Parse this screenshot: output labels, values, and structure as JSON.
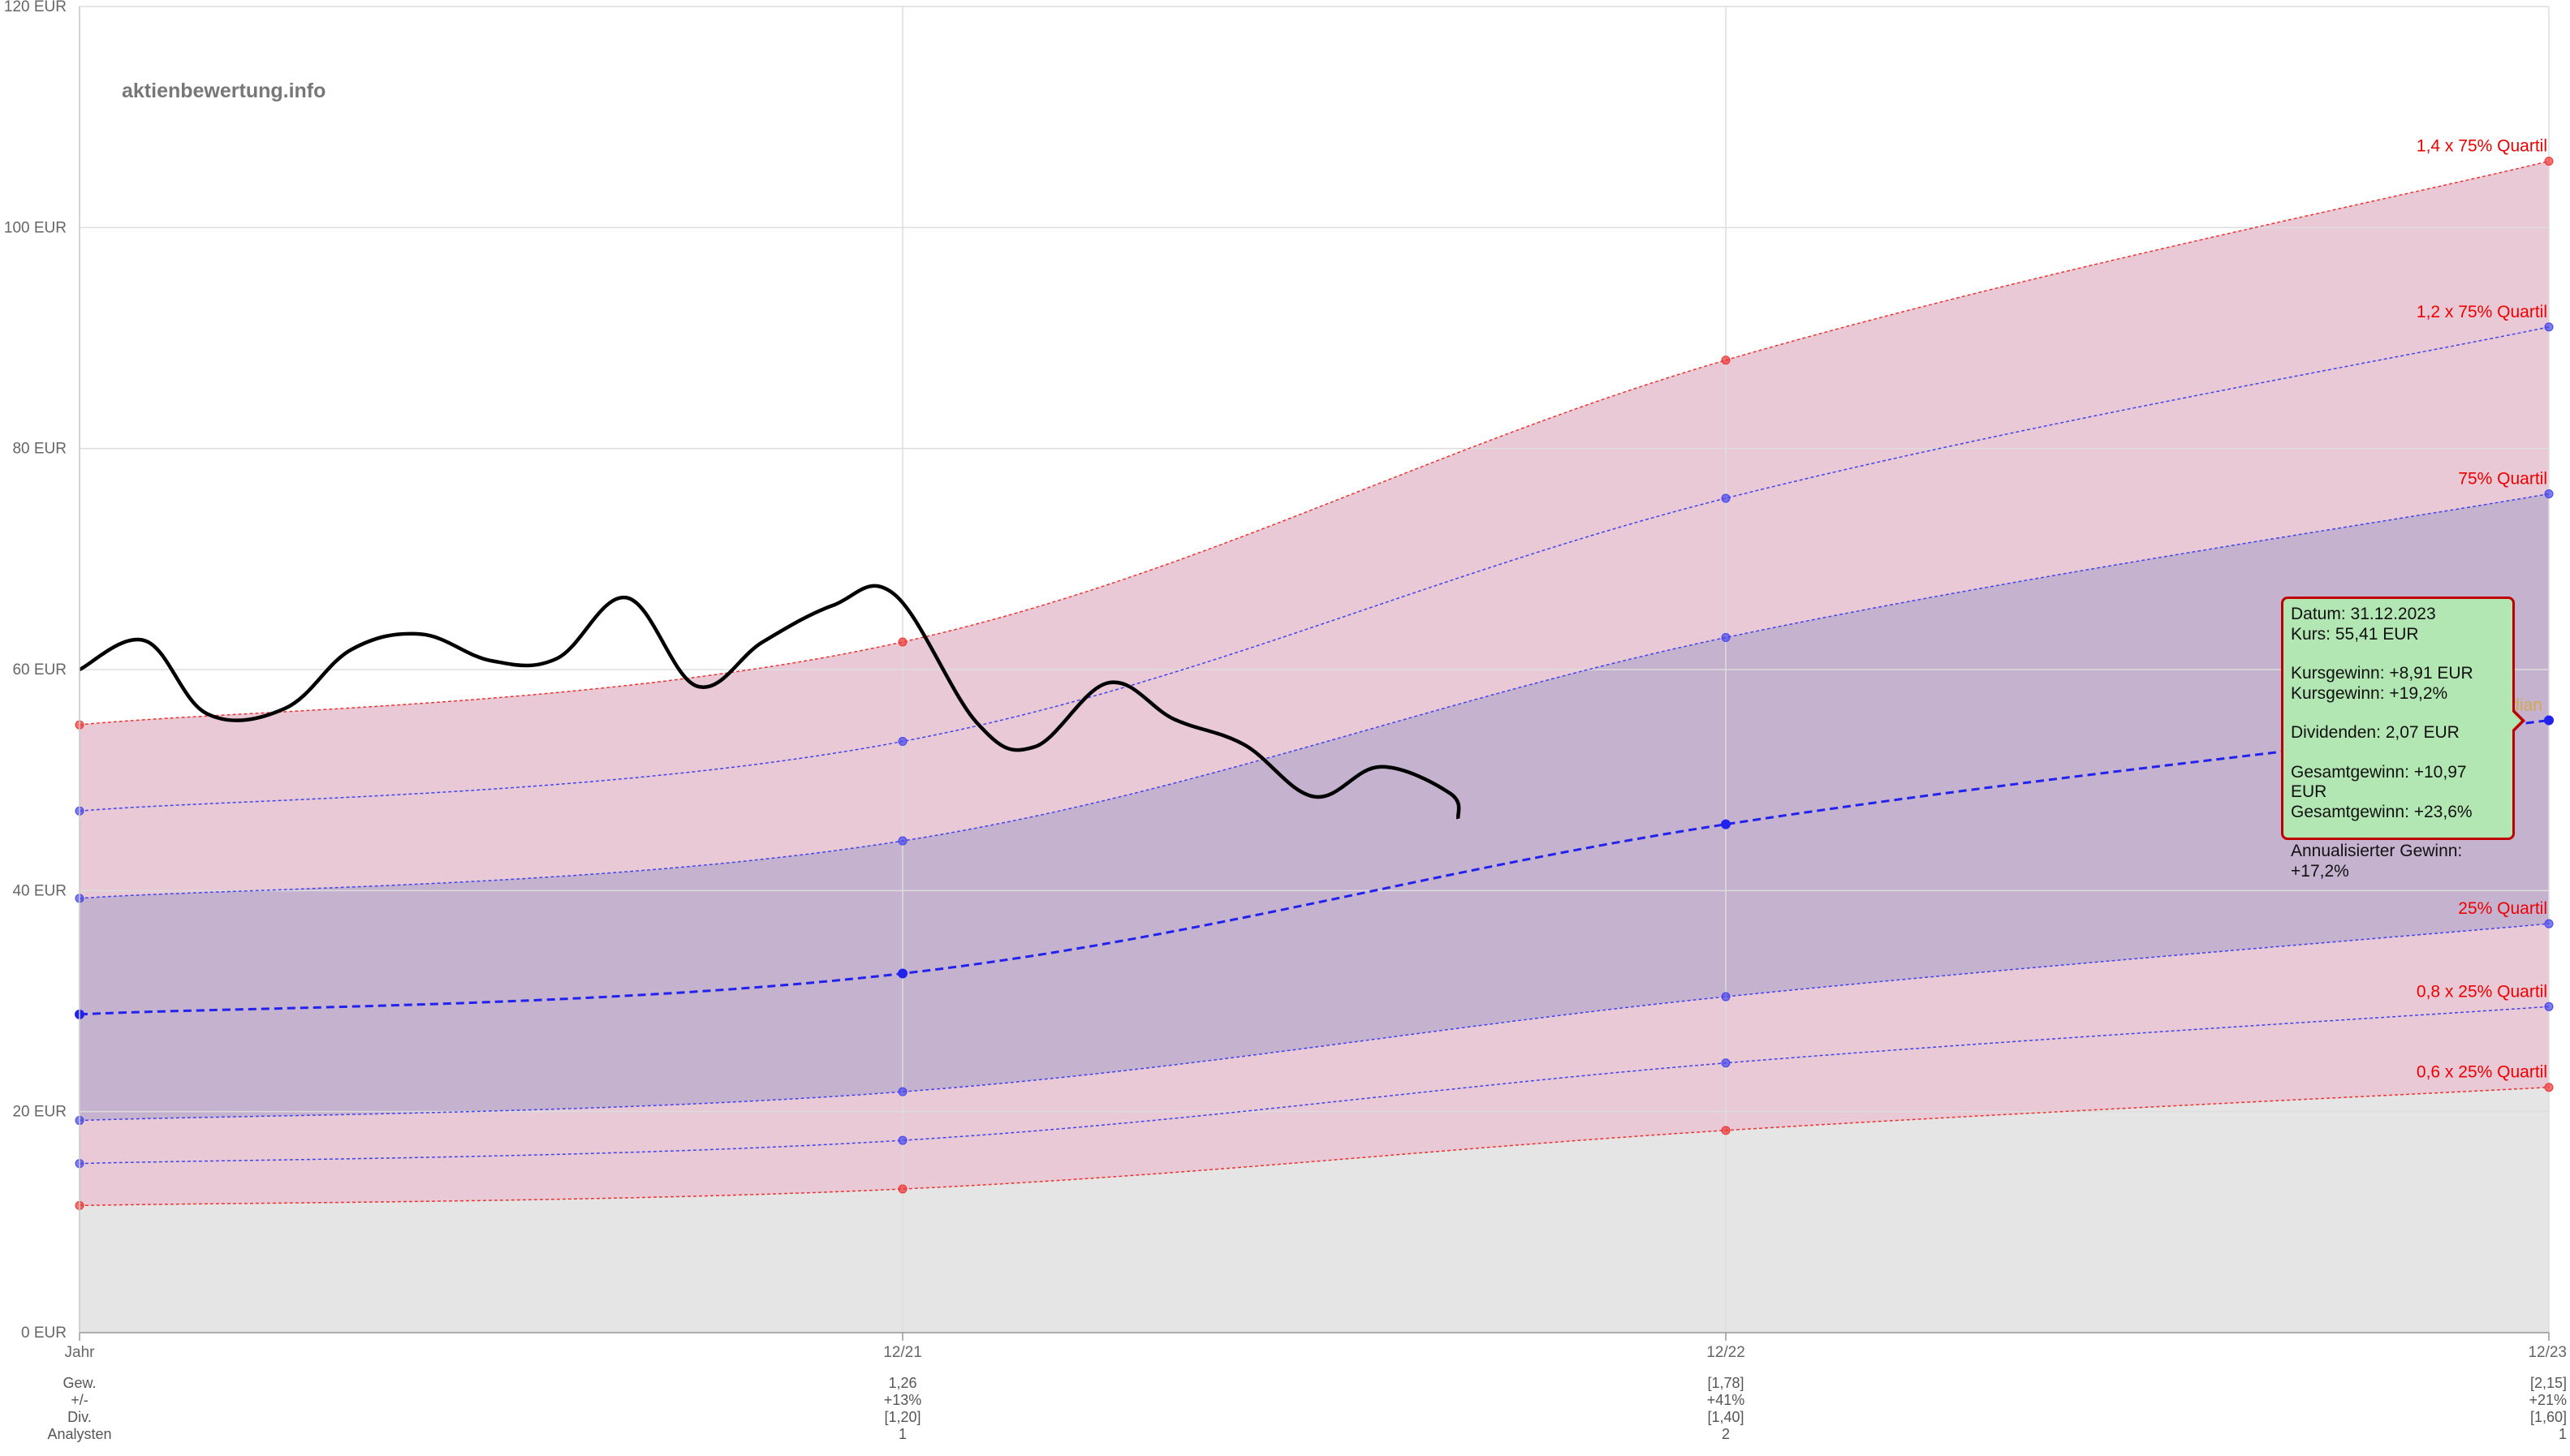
{
  "watermark": "aktienbewertung.info",
  "chart_data": {
    "type": "area",
    "title": "",
    "y_unit": "EUR",
    "ylim": [
      0,
      120
    ],
    "yticks": [
      0,
      20,
      40,
      60,
      80,
      100,
      120
    ],
    "ytick_labels": [
      "0 EUR",
      "20 EUR",
      "40 EUR",
      "60 EUR",
      "80 EUR",
      "100 EUR",
      "120 EUR"
    ],
    "grid": true,
    "categories": [
      "Jahr",
      "12/21",
      "12/22",
      "12/23"
    ],
    "x_numeric": [
      0,
      1,
      2,
      3
    ],
    "bands": [
      {
        "name": "1,4 x 75% Quartil",
        "values": [
          55.0,
          62.5,
          88.0,
          106.0
        ],
        "line_color": "#ee3333",
        "label_color": "#ee0000"
      },
      {
        "name": "1,2 x 75% Quartil",
        "values": [
          47.2,
          53.5,
          75.5,
          91.0
        ],
        "line_color": "#4444ee",
        "label_color": "#ee0000"
      },
      {
        "name": "75% Quartil",
        "values": [
          39.3,
          44.5,
          62.9,
          75.9
        ],
        "line_color": "#4444ee",
        "label_color": "#ee0000"
      },
      {
        "name": "25% Quartil",
        "values": [
          19.2,
          21.8,
          30.4,
          37.0
        ],
        "line_color": "#4444ee",
        "label_color": "#ee0000"
      },
      {
        "name": "0,8 x 25% Quartil",
        "values": [
          15.3,
          17.4,
          24.4,
          29.5
        ],
        "line_color": "#4444ee",
        "label_color": "#ee0000"
      },
      {
        "name": "0,6 x 25% Quartil",
        "values": [
          11.5,
          13.0,
          18.3,
          22.2
        ],
        "line_color": "#ee3333",
        "label_color": "#ee0000"
      }
    ],
    "median": {
      "name": "Median",
      "values": [
        28.8,
        32.5,
        46.0,
        55.41
      ],
      "color": "#2222ee",
      "label_color": "#d4a84b"
    },
    "fill_colors": {
      "outer_band": "#e8c9d5",
      "inner_band": "#c5b2cf",
      "below": "#e5e5e5"
    },
    "price_series": {
      "name": "Kurs",
      "color": "#000000",
      "points": [
        [
          0.0,
          60.0
        ],
        [
          0.08,
          62.6
        ],
        [
          0.155,
          56.0
        ],
        [
          0.25,
          56.5
        ],
        [
          0.33,
          61.8
        ],
        [
          0.415,
          63.2
        ],
        [
          0.5,
          60.8
        ],
        [
          0.58,
          61.0
        ],
        [
          0.665,
          66.5
        ],
        [
          0.75,
          58.5
        ],
        [
          0.83,
          62.5
        ],
        [
          0.915,
          65.8
        ],
        [
          0.99,
          66.8
        ],
        [
          1.09,
          55.2
        ],
        [
          1.16,
          53.0
        ],
        [
          1.25,
          58.8
        ],
        [
          1.33,
          55.5
        ],
        [
          1.415,
          53.2
        ],
        [
          1.5,
          48.5
        ],
        [
          1.58,
          51.2
        ],
        [
          1.665,
          48.8
        ],
        [
          1.675,
          46.5
        ]
      ]
    },
    "table": {
      "row_labels": [
        "Gew.",
        "+/-",
        "Div.",
        "Analysten"
      ],
      "columns": [
        {
          "x": 1,
          "values": [
            "1,26",
            "+13%",
            "[1,20]",
            "1"
          ]
        },
        {
          "x": 2,
          "values": [
            "[1,78]",
            "+41%",
            "[1,40]",
            "2"
          ]
        },
        {
          "x": 3,
          "values": [
            "[2,15]",
            "+21%",
            "[1,60]",
            "1"
          ]
        }
      ]
    },
    "tooltip": {
      "lines": [
        "Datum: 31.12.2023",
        "Kurs: 55,41 EUR",
        "",
        "Kursgewinn: +8,91 EUR",
        "Kursgewinn: +19,2%",
        "",
        "Dividenden: 2,07 EUR",
        "",
        "Gesamtgewinn: +10,97 EUR",
        "Gesamtgewinn: +23,6%",
        "",
        "Annualisierter Gewinn: +17,2%"
      ]
    }
  }
}
